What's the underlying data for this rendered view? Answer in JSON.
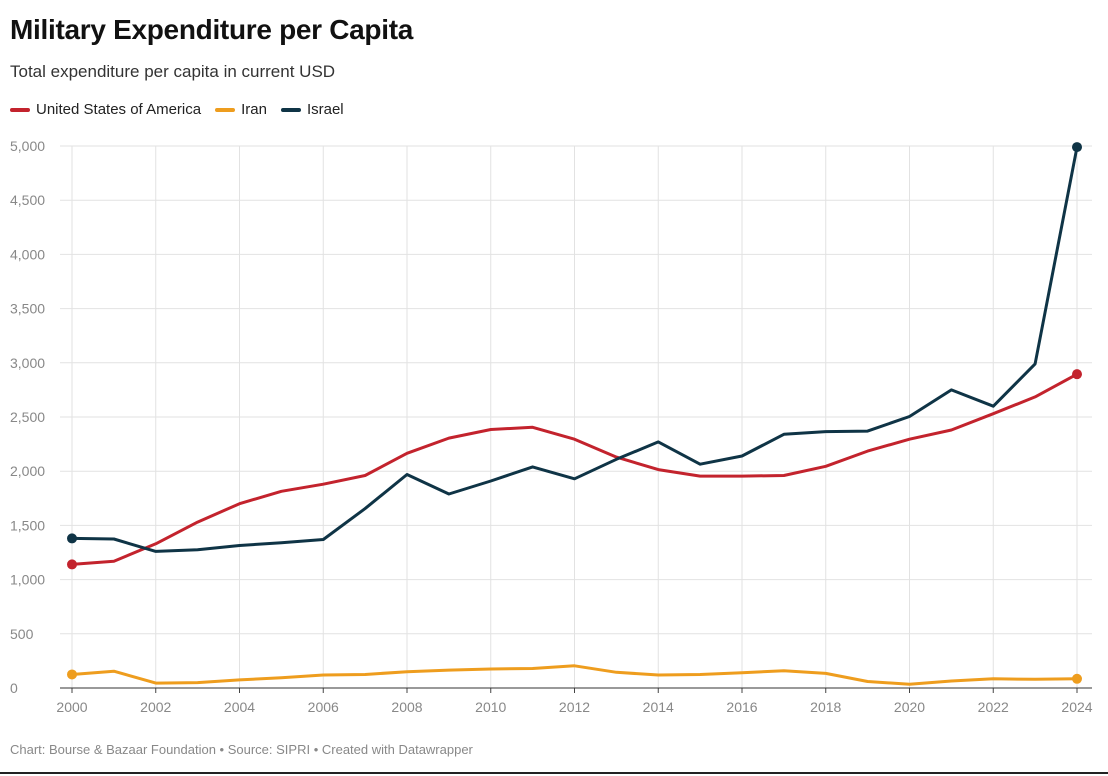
{
  "header": {
    "title": "Military Expenditure per Capita",
    "subtitle": "Total expenditure per capita in current USD"
  },
  "footer": {
    "credit": "Chart: Bourse & Bazaar Foundation • Source: SIPRI • Created with Datawrapper"
  },
  "colors": {
    "usa": "#c3232d",
    "iran": "#ee9d1e",
    "israel": "#0f3446",
    "grid": "#e2e2e2",
    "axis_text": "#888888"
  },
  "chart_data": {
    "type": "line",
    "title": "Military Expenditure per Capita",
    "subtitle": "Total expenditure per capita in current USD",
    "xlabel": "",
    "ylabel": "",
    "ylim": [
      0,
      5000
    ],
    "xlim": [
      2000,
      2024
    ],
    "grid": true,
    "legend_position": "top-left",
    "x_ticks": [
      "2000",
      "2002",
      "2004",
      "2006",
      "2008",
      "2010",
      "2012",
      "2014",
      "2016",
      "2018",
      "2020",
      "2022",
      "2024"
    ],
    "y_ticks": [
      "0",
      "500",
      "1,000",
      "1,500",
      "2,000",
      "2,500",
      "3,000",
      "3,500",
      "4,000",
      "4,500",
      "5,000"
    ],
    "x": [
      2000,
      2001,
      2002,
      2003,
      2004,
      2005,
      2006,
      2007,
      2008,
      2009,
      2010,
      2011,
      2012,
      2013,
      2014,
      2015,
      2016,
      2017,
      2018,
      2019,
      2020,
      2021,
      2022,
      2023,
      2024
    ],
    "series": [
      {
        "name": "United States of America",
        "color": "#c3232d",
        "values": [
          1140,
          1170,
          1330,
          1530,
          1700,
          1815,
          1880,
          1960,
          2165,
          2305,
          2385,
          2405,
          2295,
          2130,
          2015,
          1955,
          1955,
          1960,
          2045,
          2185,
          2295,
          2380,
          2530,
          2685,
          2895
        ]
      },
      {
        "name": "Iran",
        "color": "#ee9d1e",
        "values": [
          125,
          155,
          45,
          50,
          75,
          95,
          120,
          125,
          150,
          165,
          175,
          180,
          205,
          145,
          120,
          125,
          140,
          160,
          135,
          60,
          35,
          65,
          85,
          80,
          85
        ]
      },
      {
        "name": "Israel",
        "color": "#0f3446",
        "values": [
          1380,
          1375,
          1260,
          1275,
          1315,
          1340,
          1370,
          1655,
          1970,
          1790,
          1910,
          2040,
          1930,
          2110,
          2270,
          2065,
          2140,
          2340,
          2365,
          2370,
          2505,
          2750,
          2600,
          2990,
          4990
        ]
      }
    ]
  }
}
